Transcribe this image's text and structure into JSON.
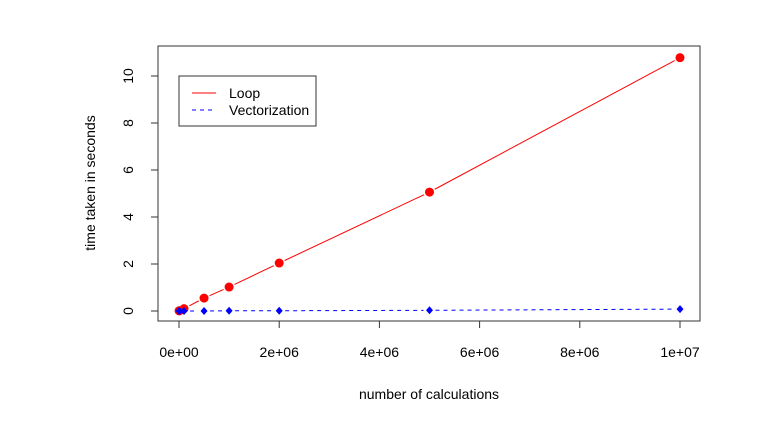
{
  "chart_data": {
    "type": "line",
    "title": "",
    "xlabel": "number of calculations",
    "ylabel": "time taken in seconds",
    "xlim": [
      0,
      10000000
    ],
    "ylim": [
      0,
      11
    ],
    "grid": false,
    "legend_position": "top-left",
    "x_ticks": [
      0,
      2000000,
      4000000,
      6000000,
      8000000,
      10000000
    ],
    "x_tick_labels": [
      "0e+00",
      "2e+06",
      "4e+06",
      "6e+06",
      "8e+06",
      "1e+07"
    ],
    "y_ticks": [
      0,
      2,
      4,
      6,
      8,
      10
    ],
    "y_tick_labels": [
      "0",
      "2",
      "4",
      "6",
      "8",
      "10"
    ],
    "x": [
      1000,
      10000,
      100000,
      500000,
      1000000,
      2000000,
      5000000,
      10000000
    ],
    "series": [
      {
        "name": "Loop",
        "color": "#ff0000",
        "line": "solid",
        "marker": "circle",
        "values": [
          0.01,
          0.01,
          0.1,
          0.55,
          1.02,
          2.04,
          5.06,
          10.78
        ]
      },
      {
        "name": "Vectorization",
        "color": "#0000ff",
        "line": "dashed",
        "marker": "diamond",
        "values": [
          0.0,
          0.0,
          0.0,
          0.0,
          0.01,
          0.01,
          0.03,
          0.08
        ]
      }
    ]
  }
}
